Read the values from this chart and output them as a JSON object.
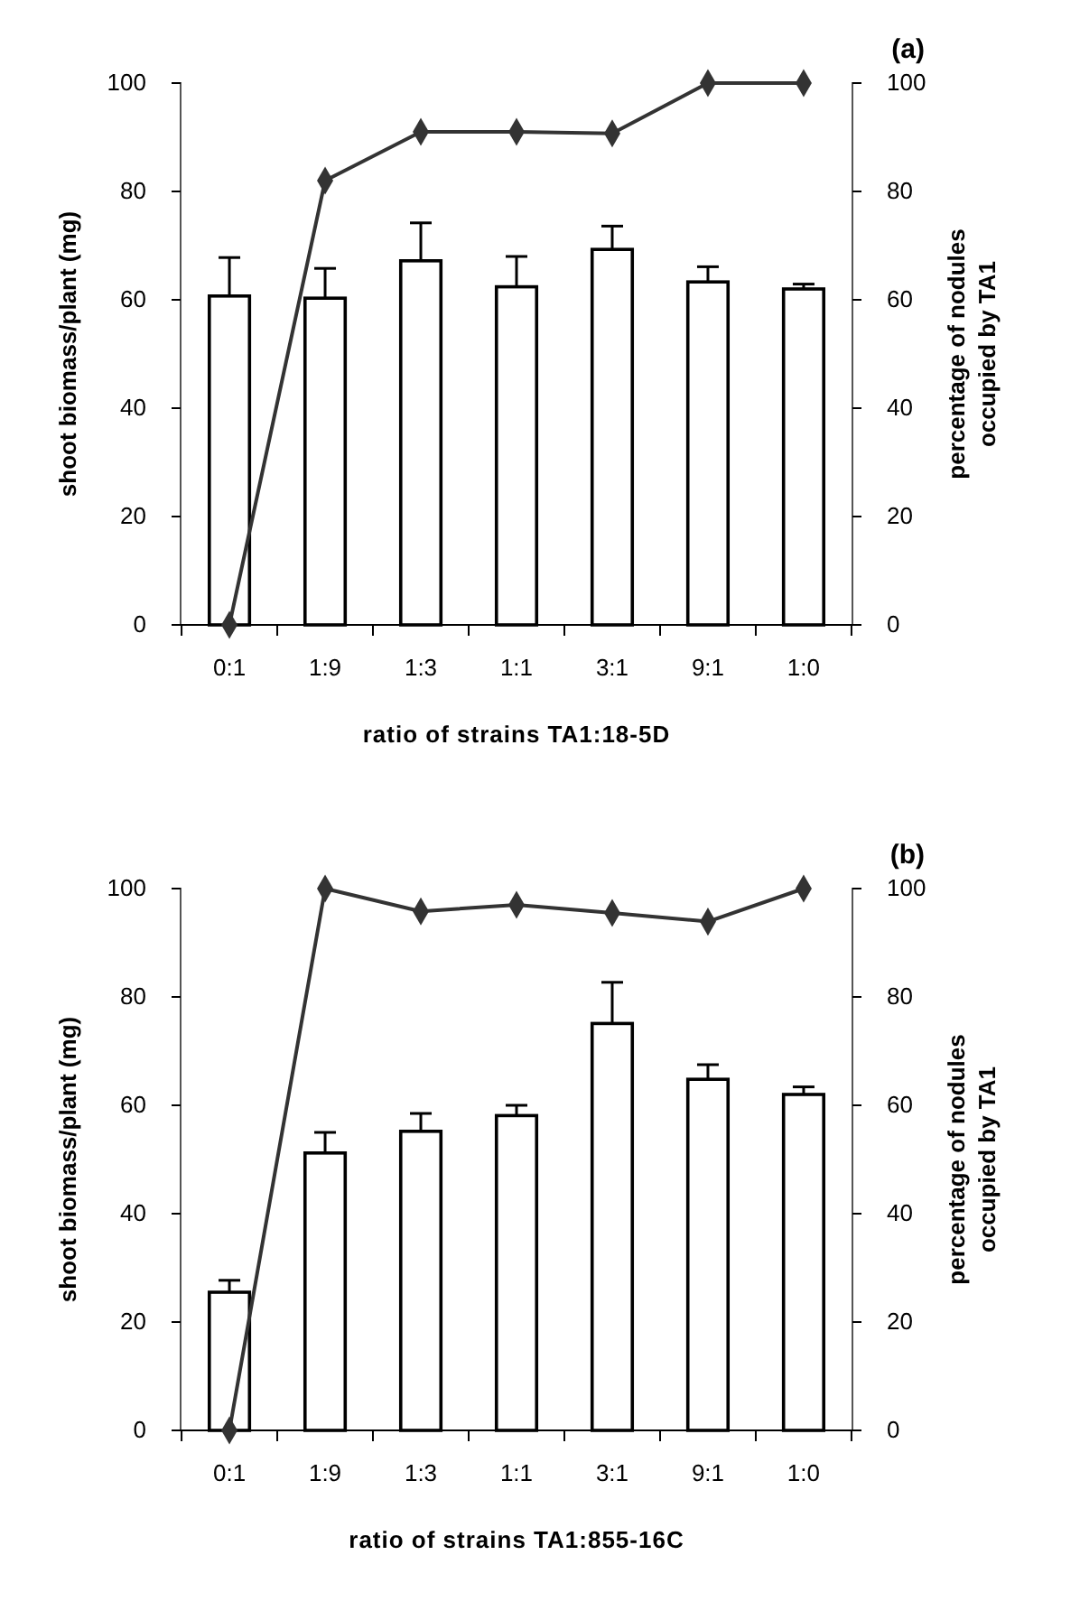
{
  "chart_data": [
    {
      "type": "bar",
      "title": "(a)",
      "xlabel": "ratio of strains TA1:18-5D",
      "ylabel": "shoot biomass/plant (mg)",
      "y2label": "percentage of nodules occupied by TA1",
      "categories": [
        "0:1",
        "1:9",
        "1:3",
        "1:1",
        "3:1",
        "9:1",
        "1:0"
      ],
      "ylim": [
        0,
        100
      ],
      "yticks": [
        0,
        20,
        40,
        60,
        80,
        100
      ],
      "y2lim": [
        0,
        100
      ],
      "y2ticks": [
        0,
        20,
        40,
        60,
        80,
        100
      ],
      "grid": false,
      "marker": "diamond",
      "series": [
        {
          "color": "#ffffff",
          "values": [
            60.7,
            60.3,
            67.2,
            62.4,
            69.3,
            63.3,
            62.0
          ],
          "errors": [
            [
              60.7,
              67.8
            ],
            [
              60.3,
              65.8
            ],
            [
              67.2,
              74.2
            ],
            [
              62.4,
              68.0
            ],
            [
              69.3,
              73.6
            ],
            [
              63.3,
              66.1
            ],
            [
              62.0,
              62.9
            ]
          ]
        },
        {
          "type": "line",
          "axis": "y2",
          "color": "#333333",
          "values": [
            0,
            82,
            91,
            91,
            90.7,
            100,
            100
          ]
        }
      ]
    },
    {
      "type": "bar",
      "title": "(b)",
      "xlabel": "ratio of strains TA1:855-16C",
      "ylabel": "shoot biomass/plant (mg)",
      "y2label": "percentage of nodules occupied by TA1",
      "categories": [
        "0:1",
        "1:9",
        "1:3",
        "1:1",
        "3:1",
        "9:1",
        "1:0"
      ],
      "ylim": [
        0,
        100
      ],
      "yticks": [
        0,
        20,
        40,
        60,
        80,
        100
      ],
      "y2lim": [
        0,
        100
      ],
      "y2ticks": [
        0,
        20,
        40,
        60,
        80,
        100
      ],
      "grid": false,
      "marker": "diamond",
      "series": [
        {
          "color": "#ffffff",
          "values": [
            25.5,
            51.2,
            55.2,
            58.1,
            75.1,
            64.8,
            62.0
          ],
          "errors": [
            [
              25.5,
              27.7
            ],
            [
              51.2,
              55.0
            ],
            [
              55.2,
              58.5
            ],
            [
              58.1,
              60.0
            ],
            [
              75.1,
              82.7
            ],
            [
              64.8,
              67.5
            ],
            [
              62.0,
              63.4
            ]
          ]
        },
        {
          "type": "line",
          "axis": "y2",
          "color": "#333333",
          "values": [
            0,
            100,
            95.8,
            97,
            95.5,
            93.9,
            100
          ]
        }
      ]
    }
  ]
}
